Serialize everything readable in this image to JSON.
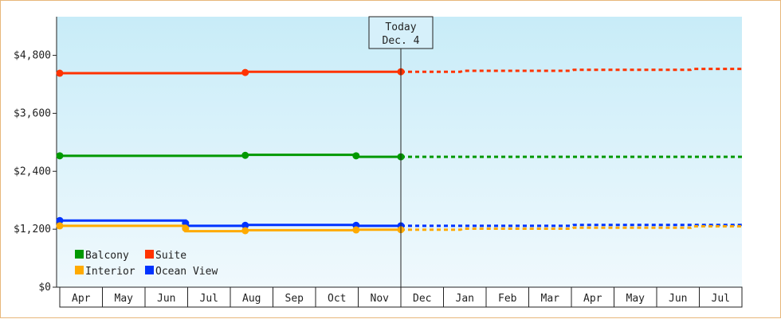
{
  "chart_data": {
    "type": "line",
    "months": [
      "Apr",
      "May",
      "Jun",
      "Jul",
      "Aug",
      "Sep",
      "Oct",
      "Nov",
      "Dec",
      "Jan",
      "Feb",
      "Mar",
      "Apr",
      "May",
      "Jun",
      "Jul"
    ],
    "ylim": [
      0,
      5600
    ],
    "yticks": [
      0,
      1200,
      2400,
      3600,
      4800
    ],
    "ytick_labels": [
      "$0",
      "$1,200",
      "$2,400",
      "$3,600",
      "$4,800"
    ],
    "today": {
      "label_line1": "Today",
      "label_line2": "Dec. 4",
      "x": 8.0
    },
    "series": [
      {
        "name": "Suite",
        "color": "#ff3300",
        "actual": [
          [
            0,
            4430
          ],
          [
            4.35,
            4430
          ],
          [
            4.35,
            4460
          ],
          [
            8.0,
            4460
          ]
        ],
        "markers": [
          0,
          4.35,
          8.0
        ],
        "forecast": [
          [
            8.0,
            4460
          ],
          [
            9.4,
            4460
          ],
          [
            9.45,
            4480
          ],
          [
            12.0,
            4480
          ],
          [
            12.05,
            4500
          ],
          [
            14.8,
            4500
          ],
          [
            14.85,
            4520
          ],
          [
            16.0,
            4520
          ]
        ]
      },
      {
        "name": "Balcony",
        "color": "#009900",
        "actual": [
          [
            0,
            2720
          ],
          [
            4.35,
            2720
          ],
          [
            4.35,
            2740
          ],
          [
            6.95,
            2740
          ],
          [
            6.95,
            2700
          ],
          [
            8.0,
            2700
          ]
        ],
        "markers": [
          0,
          4.35,
          6.95,
          8.0
        ],
        "forecast": [
          [
            8.0,
            2700
          ],
          [
            16.0,
            2700
          ]
        ]
      },
      {
        "name": "Ocean View",
        "color": "#0033ff",
        "actual": [
          [
            0,
            1380
          ],
          [
            2.95,
            1380
          ],
          [
            2.95,
            1270
          ],
          [
            4.35,
            1270
          ],
          [
            4.35,
            1290
          ],
          [
            6.95,
            1290
          ],
          [
            6.95,
            1270
          ],
          [
            8.0,
            1270
          ]
        ],
        "markers": [
          0,
          2.95,
          4.35,
          6.95,
          8.0
        ],
        "forecast": [
          [
            8.0,
            1270
          ],
          [
            12.0,
            1270
          ],
          [
            12.05,
            1290
          ],
          [
            16.0,
            1290
          ]
        ]
      },
      {
        "name": "Interior",
        "color": "#ffaa00",
        "actual": [
          [
            0,
            1270
          ],
          [
            2.95,
            1270
          ],
          [
            2.95,
            1160
          ],
          [
            4.35,
            1160
          ],
          [
            4.35,
            1180
          ],
          [
            6.95,
            1180
          ],
          [
            6.95,
            1190
          ],
          [
            8.0,
            1190
          ]
        ],
        "markers": [
          0,
          2.95,
          4.35,
          6.95,
          8.0
        ],
        "forecast": [
          [
            8.0,
            1190
          ],
          [
            9.4,
            1190
          ],
          [
            9.45,
            1210
          ],
          [
            12.0,
            1210
          ],
          [
            12.05,
            1230
          ],
          [
            14.8,
            1230
          ],
          [
            14.85,
            1260
          ],
          [
            16.0,
            1260
          ]
        ]
      }
    ],
    "legend": [
      {
        "label": "Balcony",
        "color": "#009900"
      },
      {
        "label": "Suite",
        "color": "#ff3300"
      },
      {
        "label": "Interior",
        "color": "#ffaa00"
      },
      {
        "label": "Ocean View",
        "color": "#0033ff"
      }
    ],
    "grid": false,
    "legend_position": "bottom-left"
  }
}
